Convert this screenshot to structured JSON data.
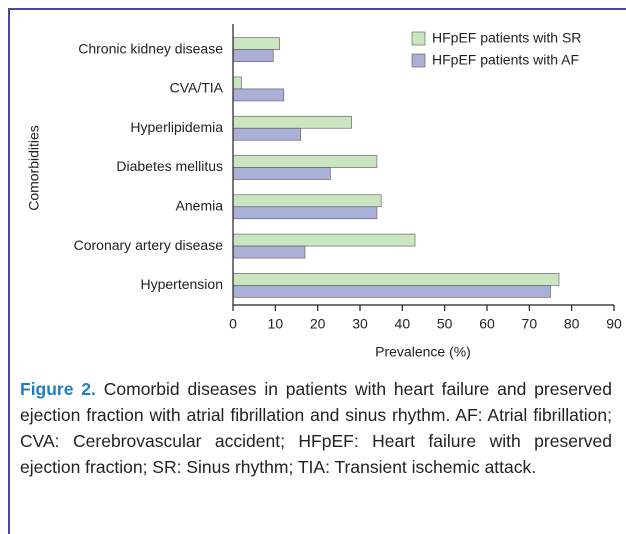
{
  "chart_data": {
    "type": "barh",
    "categories": [
      "Chronic kidney disease",
      "CVA/TIA",
      "Hyperlipidemia",
      "Diabetes mellitus",
      "Anemia",
      "Coronary artery disease",
      "Hypertension"
    ],
    "series": [
      {
        "name": "HFpEF patients with SR",
        "color": "#c9e6c1",
        "values": [
          11,
          2,
          28,
          34,
          35,
          43,
          77
        ]
      },
      {
        "name": "HFpEF patients with AF",
        "color": "#aab0d6",
        "values": [
          9.5,
          12,
          16,
          23,
          34,
          17,
          75
        ]
      }
    ],
    "xlim": [
      0,
      90
    ],
    "xticks": [
      0,
      10,
      20,
      30,
      40,
      50,
      60,
      70,
      80,
      90
    ],
    "x_label": "Prevalence (%)",
    "y_label": "Comorbidities",
    "legend": "upper right"
  },
  "caption": {
    "label": "Figure 2.",
    "text": "Comorbid diseases in patients with heart failure and preserved ejection fraction with atrial fibrillation and sinus rhythm. AF: Atrial fibrillation; CVA: Cerebrovascular accident; HFpEF: Heart failure with preserved ejection fraction; SR: Sinus rhythm; TIA: Transient ischemic attack."
  }
}
